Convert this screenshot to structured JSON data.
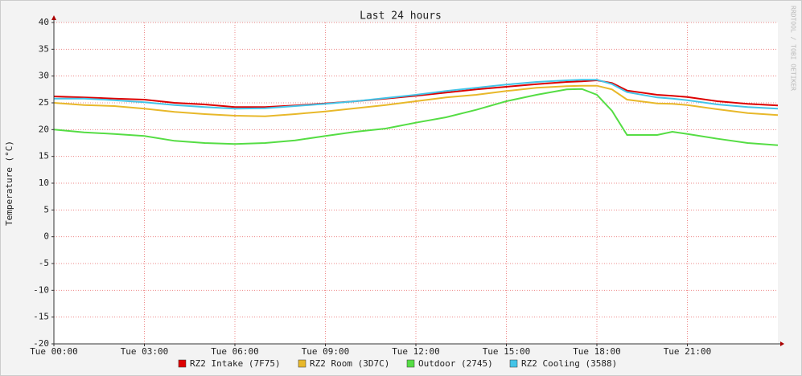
{
  "chart_data": {
    "type": "line",
    "title": "Last 24 hours",
    "y_label": "Temperature (°C)",
    "watermark": "RRDTOOL / TOBI OETIKER",
    "x": [
      0,
      1,
      2,
      3,
      4,
      5,
      6,
      7,
      8,
      9,
      10,
      11,
      12,
      13,
      14,
      15,
      16,
      17,
      17.5,
      18,
      18.5,
      19,
      20,
      20.5,
      21,
      22,
      23,
      24
    ],
    "xlim": [
      0,
      24
    ],
    "xticks": [
      {
        "value": 0,
        "label": "Tue 00:00"
      },
      {
        "value": 3,
        "label": "Tue 03:00"
      },
      {
        "value": 6,
        "label": "Tue 06:00"
      },
      {
        "value": 9,
        "label": "Tue 09:00"
      },
      {
        "value": 12,
        "label": "Tue 12:00"
      },
      {
        "value": 15,
        "label": "Tue 15:00"
      },
      {
        "value": 18,
        "label": "Tue 18:00"
      },
      {
        "value": 21,
        "label": "Tue 21:00"
      }
    ],
    "ylim": [
      -20,
      40
    ],
    "yticks": [
      -20,
      -15,
      -10,
      -5,
      0,
      5,
      10,
      15,
      20,
      25,
      30,
      35,
      40
    ],
    "grid": true,
    "series": [
      {
        "name": "RZ2 Intake (7F75)",
        "color": "#dd0000",
        "values": [
          26.2,
          26.0,
          25.8,
          25.6,
          25.0,
          24.7,
          24.2,
          24.2,
          24.5,
          24.9,
          25.3,
          25.8,
          26.3,
          26.9,
          27.5,
          28.0,
          28.5,
          28.9,
          29.0,
          29.2,
          28.7,
          27.3,
          26.5,
          26.3,
          26.1,
          25.3,
          24.8,
          24.5
        ]
      },
      {
        "name": "RZ2 Room (3D7C)",
        "color": "#e8b82a",
        "values": [
          25.0,
          24.6,
          24.4,
          23.9,
          23.3,
          22.9,
          22.6,
          22.5,
          22.9,
          23.4,
          24.0,
          24.6,
          25.3,
          26.0,
          26.5,
          27.2,
          27.8,
          28.1,
          28.2,
          28.2,
          27.5,
          25.6,
          24.9,
          24.8,
          24.6,
          23.8,
          23.1,
          22.7
        ]
      },
      {
        "name": "Outdoor (2745)",
        "color": "#55dd44",
        "values": [
          20.0,
          19.5,
          19.2,
          18.8,
          17.9,
          17.5,
          17.3,
          17.5,
          18.0,
          18.8,
          19.6,
          20.2,
          21.3,
          22.3,
          23.7,
          25.3,
          26.5,
          27.5,
          27.6,
          26.5,
          23.5,
          19.0,
          19.0,
          19.6,
          19.2,
          18.3,
          17.5,
          17.1
        ]
      },
      {
        "name": "RZ2 Cooling (3588)",
        "color": "#44c4e8",
        "values": [
          25.8,
          25.8,
          25.5,
          25.1,
          24.6,
          24.2,
          23.9,
          24.0,
          24.4,
          24.8,
          25.3,
          25.9,
          26.5,
          27.2,
          27.8,
          28.4,
          28.9,
          29.2,
          29.3,
          29.3,
          28.5,
          27.0,
          26.0,
          25.8,
          25.5,
          24.7,
          24.2,
          23.9
        ]
      }
    ]
  }
}
